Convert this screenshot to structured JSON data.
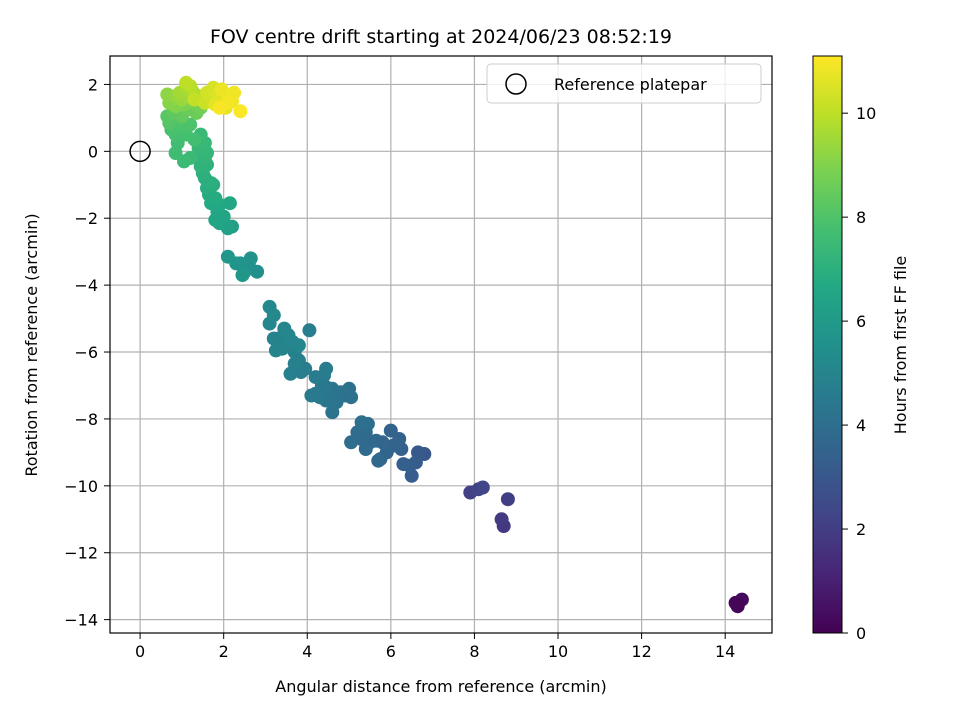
{
  "chart_data": {
    "type": "scatter",
    "title": "FOV centre drift starting at 2024/06/23 08:52:19",
    "xlabel": "Angular distance from reference (arcmin)",
    "ylabel": "Rotation from reference (arcmin)",
    "xlim": [
      -0.72,
      15.12
    ],
    "ylim": [
      -14.4,
      2.85
    ],
    "xticks": [
      0,
      2,
      4,
      6,
      8,
      10,
      12,
      14
    ],
    "yticks": [
      2,
      0,
      -2,
      -4,
      -6,
      -8,
      -10,
      -12,
      -14
    ],
    "grid": true,
    "legend": {
      "position": "top-right",
      "entries": [
        "Reference platepar"
      ]
    },
    "reference_point": {
      "x": 0,
      "y": 0
    },
    "colorbar": {
      "label": "Hours from first FF file",
      "min": 0,
      "max": 11.1,
      "ticks": [
        0,
        2,
        4,
        6,
        8,
        10
      ],
      "colormap": "viridis"
    },
    "series": [
      {
        "points": [
          [
            14.25,
            -13.5,
            0.1
          ],
          [
            14.3,
            -13.6,
            0.2
          ],
          [
            14.4,
            -13.4,
            0.3
          ],
          [
            14.3,
            -13.55,
            0.15
          ],
          [
            8.7,
            -11.2,
            1.8
          ],
          [
            8.65,
            -11.0,
            1.9
          ],
          [
            8.8,
            -10.4,
            2.0
          ],
          [
            7.9,
            -10.2,
            2.1
          ],
          [
            8.1,
            -10.1,
            2.2
          ],
          [
            8.2,
            -10.05,
            2.3
          ],
          [
            6.8,
            -9.05,
            3.0
          ],
          [
            6.65,
            -9.0,
            3.1
          ],
          [
            6.6,
            -9.3,
            3.2
          ],
          [
            6.5,
            -9.7,
            3.25
          ],
          [
            6.45,
            -9.4,
            3.3
          ],
          [
            6.3,
            -9.35,
            3.35
          ],
          [
            6.25,
            -8.9,
            3.4
          ],
          [
            6.2,
            -8.6,
            3.45
          ],
          [
            6.0,
            -8.35,
            3.5
          ],
          [
            6.05,
            -8.8,
            3.55
          ],
          [
            5.9,
            -9.0,
            3.6
          ],
          [
            5.75,
            -9.2,
            3.62
          ],
          [
            5.8,
            -8.7,
            3.65
          ],
          [
            5.65,
            -8.65,
            3.7
          ],
          [
            5.7,
            -9.25,
            3.72
          ],
          [
            5.5,
            -8.7,
            3.75
          ],
          [
            5.4,
            -8.9,
            3.8
          ],
          [
            5.4,
            -8.4,
            3.85
          ],
          [
            5.3,
            -8.6,
            3.88
          ],
          [
            5.2,
            -8.4,
            3.9
          ],
          [
            5.05,
            -8.7,
            3.95
          ],
          [
            5.45,
            -8.15,
            4.0
          ],
          [
            5.3,
            -8.1,
            4.05
          ],
          [
            5.0,
            -7.1,
            4.1
          ],
          [
            5.05,
            -7.35,
            4.12
          ],
          [
            4.9,
            -7.3,
            4.15
          ],
          [
            4.8,
            -7.2,
            4.2
          ],
          [
            4.7,
            -7.5,
            4.22
          ],
          [
            4.6,
            -7.8,
            4.25
          ],
          [
            4.55,
            -7.35,
            4.3
          ],
          [
            4.6,
            -7.1,
            4.32
          ],
          [
            4.45,
            -7.45,
            4.35
          ],
          [
            4.45,
            -7.05,
            4.4
          ],
          [
            4.35,
            -7.0,
            4.42
          ],
          [
            4.3,
            -7.35,
            4.45
          ],
          [
            4.2,
            -7.25,
            4.5
          ],
          [
            4.1,
            -7.3,
            4.52
          ],
          [
            4.4,
            -6.7,
            4.55
          ],
          [
            4.45,
            -6.5,
            4.6
          ],
          [
            4.2,
            -6.75,
            4.62
          ],
          [
            4.05,
            -5.35,
            4.65
          ],
          [
            3.95,
            -6.5,
            4.7
          ],
          [
            3.85,
            -6.6,
            4.72
          ],
          [
            3.8,
            -6.25,
            4.75
          ],
          [
            3.7,
            -6.35,
            4.78
          ],
          [
            3.6,
            -6.65,
            4.8
          ],
          [
            3.7,
            -6.0,
            4.82
          ],
          [
            3.6,
            -5.85,
            4.85
          ],
          [
            3.5,
            -5.75,
            4.88
          ],
          [
            3.4,
            -5.9,
            4.9
          ],
          [
            3.3,
            -5.6,
            4.92
          ],
          [
            3.2,
            -5.6,
            4.95
          ],
          [
            3.35,
            -5.8,
            4.98
          ],
          [
            3.25,
            -5.95,
            5.0
          ],
          [
            3.45,
            -5.3,
            5.02
          ],
          [
            3.55,
            -5.5,
            5.05
          ],
          [
            3.65,
            -5.7,
            5.08
          ],
          [
            3.8,
            -5.8,
            5.1
          ],
          [
            3.1,
            -5.15,
            5.12
          ],
          [
            3.2,
            -4.9,
            5.15
          ],
          [
            3.1,
            -4.65,
            5.2
          ],
          [
            2.8,
            -3.6,
            5.5
          ],
          [
            2.6,
            -3.35,
            5.55
          ],
          [
            2.5,
            -3.6,
            5.6
          ],
          [
            2.65,
            -3.2,
            5.65
          ],
          [
            2.4,
            -3.35,
            5.7
          ],
          [
            2.3,
            -3.35,
            5.75
          ],
          [
            2.1,
            -3.15,
            5.8
          ],
          [
            2.45,
            -3.7,
            5.85
          ],
          [
            2.2,
            -2.25,
            6.2
          ],
          [
            2.1,
            -2.3,
            6.3
          ],
          [
            1.9,
            -2.15,
            6.4
          ],
          [
            2.0,
            -1.95,
            6.45
          ],
          [
            1.8,
            -2.05,
            6.5
          ],
          [
            1.85,
            -1.8,
            6.55
          ],
          [
            2.15,
            -1.55,
            6.6
          ],
          [
            1.9,
            -1.6,
            6.65
          ],
          [
            1.7,
            -1.55,
            6.7
          ],
          [
            1.8,
            -1.4,
            6.75
          ],
          [
            1.65,
            -1.3,
            6.8
          ],
          [
            1.75,
            -1.0,
            6.85
          ],
          [
            1.6,
            -1.1,
            6.9
          ],
          [
            1.55,
            -0.8,
            6.95
          ],
          [
            1.7,
            -0.95,
            7.0
          ],
          [
            1.5,
            -0.65,
            7.05
          ],
          [
            1.6,
            -0.4,
            7.1
          ],
          [
            1.45,
            -0.45,
            7.15
          ],
          [
            1.55,
            -0.25,
            7.2
          ],
          [
            1.45,
            -0.1,
            7.25
          ],
          [
            1.6,
            -0.05,
            7.3
          ],
          [
            1.4,
            0.1,
            7.35
          ],
          [
            1.55,
            0.25,
            7.4
          ],
          [
            1.45,
            0.5,
            7.45
          ],
          [
            1.2,
            -0.2,
            7.5
          ],
          [
            1.05,
            -0.3,
            7.55
          ],
          [
            0.85,
            -0.05,
            7.6
          ],
          [
            0.9,
            0.25,
            7.65
          ],
          [
            1.3,
            0.35,
            7.7
          ],
          [
            1.1,
            0.5,
            7.75
          ],
          [
            0.85,
            0.5,
            7.8
          ],
          [
            0.75,
            0.65,
            7.85
          ],
          [
            1.0,
            0.75,
            7.9
          ],
          [
            1.2,
            0.8,
            7.95
          ],
          [
            0.95,
            0.95,
            8.0
          ],
          [
            0.7,
            0.85,
            8.1
          ],
          [
            0.65,
            1.05,
            8.2
          ],
          [
            0.8,
            1.15,
            8.3
          ],
          [
            1.0,
            1.05,
            8.4
          ],
          [
            1.15,
            1.25,
            8.5
          ],
          [
            1.35,
            1.15,
            8.6
          ],
          [
            1.45,
            1.3,
            8.7
          ],
          [
            1.3,
            1.45,
            8.8
          ],
          [
            1.05,
            1.4,
            8.9
          ],
          [
            0.85,
            1.35,
            9.0
          ],
          [
            0.7,
            1.45,
            9.1
          ],
          [
            0.65,
            1.7,
            9.2
          ],
          [
            0.85,
            1.65,
            9.3
          ],
          [
            1.0,
            1.55,
            9.4
          ],
          [
            1.15,
            1.65,
            9.5
          ],
          [
            0.95,
            1.75,
            9.55
          ],
          [
            1.1,
            1.85,
            9.6
          ],
          [
            1.25,
            1.8,
            9.7
          ],
          [
            1.4,
            1.65,
            9.8
          ],
          [
            1.2,
            1.95,
            9.9
          ],
          [
            1.1,
            2.05,
            10.0
          ],
          [
            1.3,
            1.55,
            10.1
          ],
          [
            1.55,
            1.45,
            10.2
          ],
          [
            1.7,
            1.55,
            10.3
          ],
          [
            1.6,
            1.75,
            10.35
          ],
          [
            1.75,
            1.9,
            10.4
          ],
          [
            1.85,
            1.7,
            10.5
          ],
          [
            1.95,
            1.55,
            10.6
          ],
          [
            1.8,
            1.4,
            10.65
          ],
          [
            2.05,
            1.3,
            10.7
          ],
          [
            2.1,
            1.65,
            10.75
          ],
          [
            1.95,
            1.85,
            10.8
          ],
          [
            2.2,
            1.5,
            10.85
          ],
          [
            2.25,
            1.75,
            10.9
          ],
          [
            2.1,
            1.45,
            10.95
          ],
          [
            1.9,
            1.3,
            11.0
          ],
          [
            2.4,
            1.2,
            11.05
          ]
        ]
      }
    ]
  }
}
